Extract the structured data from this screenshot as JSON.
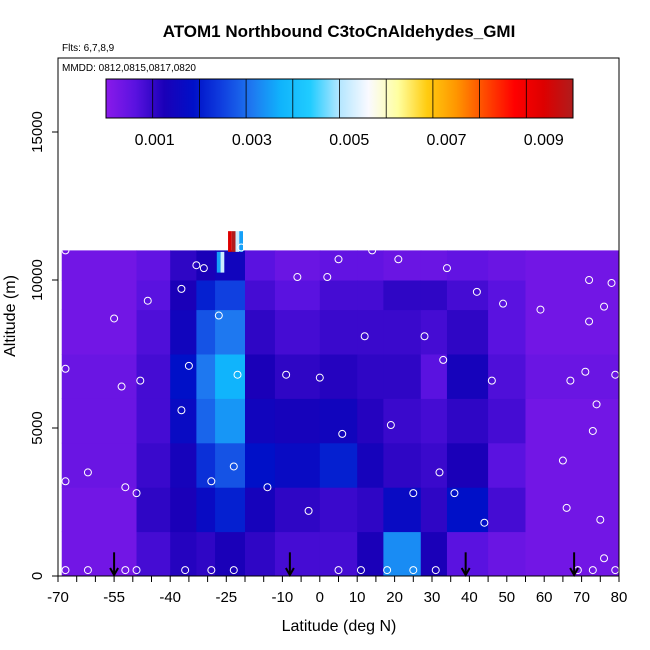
{
  "chart_data": {
    "type": "heatmap",
    "title": "ATOM1 Northbound C3toCnAldehydes_GMI",
    "subtitle_flights": "Flts: 6,7,8,9",
    "subtitle_dates": "MMDD: 0812,0815,0817,0820",
    "xlabel": "Latitude (deg N)",
    "ylabel": "Altitude (m)",
    "xlim": [
      -70,
      80
    ],
    "ylim": [
      0,
      17500
    ],
    "x_ticks": [
      -70,
      -55,
      -40,
      -25,
      -10,
      0,
      10,
      20,
      30,
      40,
      50,
      60,
      70,
      80
    ],
    "x_tick_labels": [
      "-70",
      "-55",
      "-40",
      "-25",
      "-10",
      "0",
      "10",
      "20",
      "30",
      "40",
      "50",
      "60",
      "70",
      "80"
    ],
    "x_minor_ticks": [
      -65,
      -60,
      -50,
      -45,
      -35,
      -30,
      -20,
      -15,
      -5,
      5,
      15,
      25,
      35,
      45,
      55,
      65,
      75
    ],
    "y_ticks": [
      0,
      5000,
      10000,
      15000
    ],
    "y_tick_labels": [
      "0",
      "5000",
      "10000",
      "15000"
    ],
    "colorbar": {
      "range": [
        0,
        0.0096
      ],
      "tick_values": [
        0.001,
        0.003,
        0.005,
        0.007,
        0.009
      ],
      "tick_labels": [
        "0.001",
        "0.003",
        "0.005",
        "0.007",
        "0.009"
      ],
      "colors": [
        "#8a1aea",
        "#5a12e0",
        "#1a00b8",
        "#0010c8",
        "#1040e0",
        "#1e78f0",
        "#10b4fc",
        "#20ccff",
        "#b4e6ff",
        "#fafaff",
        "#ffffa0",
        "#ffcc10",
        "#ff9600",
        "#ff4800",
        "#ff0000",
        "#dd0000",
        "#b01c1c"
      ],
      "divisions": 10
    },
    "field_columns": [
      {
        "x0": -69,
        "x1": -49,
        "levels": [
          0.0003,
          0.0003,
          0.0004,
          0.0004,
          0.0004,
          0.0003,
          0.0003,
          0.0003
        ]
      },
      {
        "x0": -49,
        "x1": -40,
        "levels": [
          0.0008,
          0.001,
          0.0009,
          0.0008,
          0.0008,
          0.0007,
          0.0006,
          0.0005
        ]
      },
      {
        "x0": -40,
        "x1": -33,
        "levels": [
          0.0011,
          0.0012,
          0.0013,
          0.0016,
          0.0018,
          0.0014,
          0.0012,
          0.001
        ]
      },
      {
        "x0": -33,
        "x1": -28,
        "levels": [
          0.001,
          0.0016,
          0.0022,
          0.0028,
          0.003,
          0.0026,
          0.002,
          0.0012
        ]
      },
      {
        "x0": -28,
        "x1": -20,
        "levels": [
          0.0012,
          0.002,
          0.0026,
          0.0033,
          0.0036,
          0.003,
          0.0024,
          0.0014
        ]
      },
      {
        "x0": -20,
        "x1": -12,
        "levels": [
          0.001,
          0.0013,
          0.0018,
          0.0014,
          0.0012,
          0.001,
          0.0008,
          0.0006
        ]
      },
      {
        "x0": -12,
        "x1": 0,
        "levels": [
          0.0008,
          0.001,
          0.0016,
          0.0013,
          0.001,
          0.0008,
          0.0006,
          0.0004
        ]
      },
      {
        "x0": 0,
        "x1": 10,
        "levels": [
          0.0008,
          0.0009,
          0.002,
          0.0014,
          0.0011,
          0.0009,
          0.0008,
          0.0005
        ]
      },
      {
        "x0": 10,
        "x1": 17,
        "levels": [
          0.0012,
          0.001,
          0.0013,
          0.0011,
          0.001,
          0.0009,
          0.0008,
          0.0005
        ]
      },
      {
        "x0": 17,
        "x1": 27,
        "levels": [
          0.0032,
          0.0016,
          0.001,
          0.0009,
          0.001,
          0.0009,
          0.001,
          0.0004
        ]
      },
      {
        "x0": 27,
        "x1": 34,
        "levels": [
          0.0012,
          0.001,
          0.0009,
          0.0008,
          0.0006,
          0.0008,
          0.001,
          0.0004
        ]
      },
      {
        "x0": 34,
        "x1": 45,
        "levels": [
          0.0006,
          0.0018,
          0.0012,
          0.001,
          0.0013,
          0.001,
          0.0008,
          0.0005
        ]
      },
      {
        "x0": 45,
        "x1": 55,
        "levels": [
          0.0004,
          0.0008,
          0.0006,
          0.0008,
          0.0007,
          0.0006,
          0.0006,
          0.0004
        ]
      },
      {
        "x0": 55,
        "x1": 80,
        "levels": [
          0.0003,
          0.0003,
          0.0003,
          0.0003,
          0.0004,
          0.0003,
          0.0003,
          0.0003
        ]
      }
    ],
    "field_altitude_bands": [
      0,
      1500,
      3000,
      4500,
      6000,
      7500,
      9000,
      10000,
      11000
    ],
    "top_plume": [
      {
        "x": -24,
        "alt": 11300,
        "value": 0.009
      },
      {
        "x": -23,
        "alt": 11300,
        "value": 0.0096
      },
      {
        "x": -22,
        "alt": 11300,
        "value": 0.005
      },
      {
        "x": -21,
        "alt": 11300,
        "value": 0.0034
      },
      {
        "x": -27,
        "alt": 10600,
        "value": 0.0034
      },
      {
        "x": -26,
        "alt": 10600,
        "value": 0.005
      }
    ],
    "sample_points": [
      [
        -68,
        11000
      ],
      [
        -68,
        7000
      ],
      [
        -68,
        3200
      ],
      [
        -68,
        200
      ],
      [
        -62,
        3500
      ],
      [
        -62,
        200
      ],
      [
        -55,
        8700
      ],
      [
        -53,
        6400
      ],
      [
        -52,
        3000
      ],
      [
        -52,
        200
      ],
      [
        -49,
        2800
      ],
      [
        -49,
        200
      ],
      [
        -48,
        6600
      ],
      [
        -46,
        9300
      ],
      [
        -37,
        9700
      ],
      [
        -37,
        5600
      ],
      [
        -36,
        200
      ],
      [
        -35,
        7100
      ],
      [
        -33,
        10500
      ],
      [
        -31,
        10400
      ],
      [
        -29,
        3200
      ],
      [
        -29,
        200
      ],
      [
        -27,
        8800
      ],
      [
        -23,
        3700
      ],
      [
        -23,
        200
      ],
      [
        -22,
        6800
      ],
      [
        -21,
        11100
      ],
      [
        -17,
        11200
      ],
      [
        -14,
        3000
      ],
      [
        -9,
        6800
      ],
      [
        -6,
        10100
      ],
      [
        -3,
        2200
      ],
      [
        0,
        6700
      ],
      [
        2,
        10100
      ],
      [
        5,
        10700
      ],
      [
        5,
        200
      ],
      [
        6,
        4800
      ],
      [
        11,
        200
      ],
      [
        12,
        8100
      ],
      [
        14,
        11000
      ],
      [
        18,
        200
      ],
      [
        19,
        5100
      ],
      [
        21,
        10700
      ],
      [
        25,
        200
      ],
      [
        25,
        2800
      ],
      [
        28,
        8100
      ],
      [
        31,
        200
      ],
      [
        32,
        3500
      ],
      [
        33,
        7300
      ],
      [
        34,
        10400
      ],
      [
        36,
        2800
      ],
      [
        42,
        9600
      ],
      [
        44,
        1800
      ],
      [
        46,
        6600
      ],
      [
        49,
        9200
      ],
      [
        59,
        9000
      ],
      [
        65,
        3900
      ],
      [
        66,
        2300
      ],
      [
        67,
        6600
      ],
      [
        69,
        200
      ],
      [
        70,
        11200
      ],
      [
        71,
        6900
      ],
      [
        72,
        8600
      ],
      [
        72,
        10000
      ],
      [
        73,
        4900
      ],
      [
        73,
        200
      ],
      [
        74,
        5800
      ],
      [
        75,
        1900
      ],
      [
        76,
        9100
      ],
      [
        76,
        600
      ],
      [
        78,
        9900
      ],
      [
        79,
        6800
      ],
      [
        79,
        200
      ]
    ],
    "flight_marker_latitudes": [
      -55,
      -8,
      39,
      68
    ],
    "grid": false
  }
}
